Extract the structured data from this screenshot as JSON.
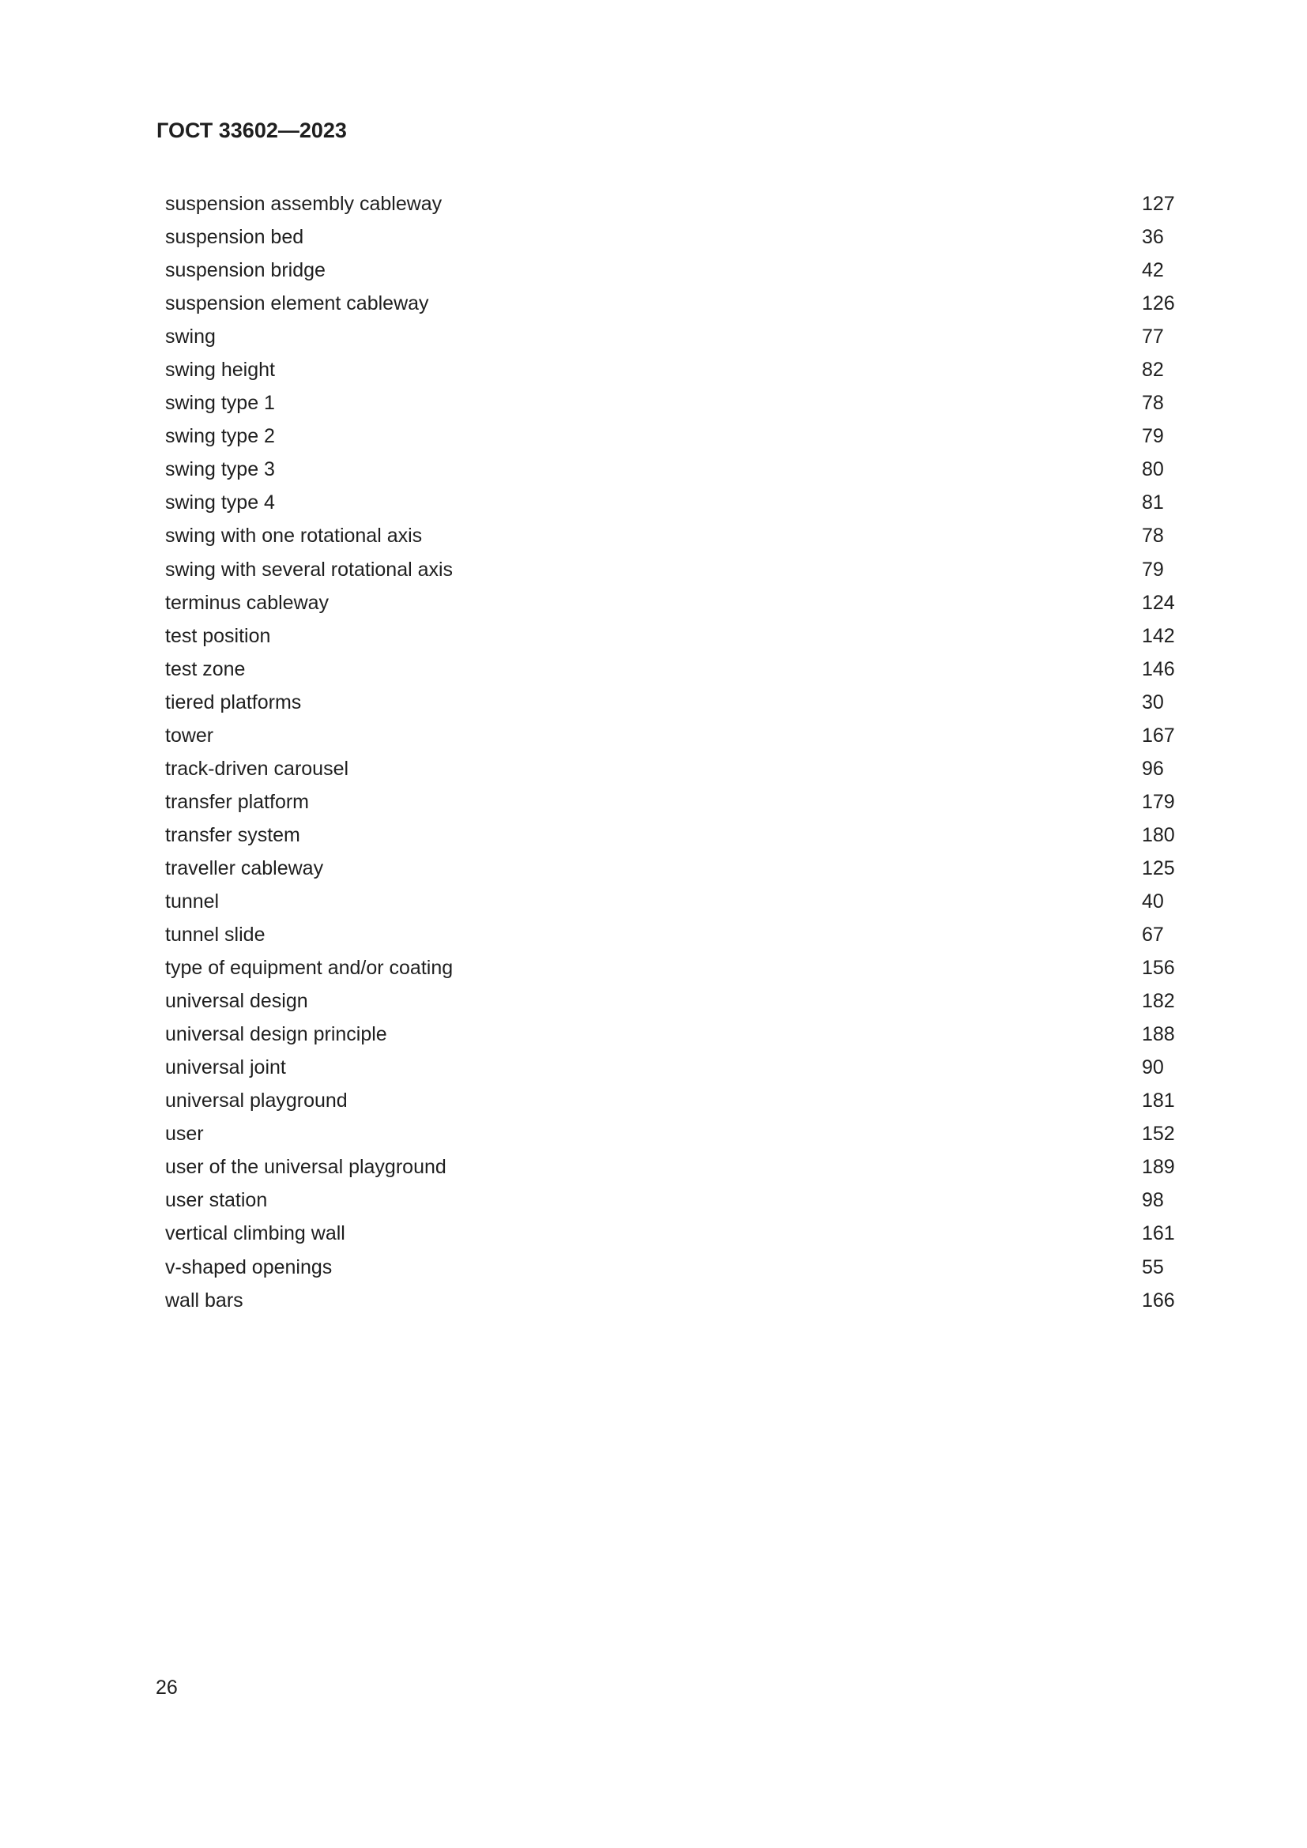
{
  "header": {
    "title": "ГОСТ 33602—2023"
  },
  "index": [
    {
      "term": "suspension assembly cableway",
      "page": "127"
    },
    {
      "term": "suspension bed",
      "page": "36"
    },
    {
      "term": "suspension bridge",
      "page": "42"
    },
    {
      "term": "suspension element cableway",
      "page": "126"
    },
    {
      "term": "swing",
      "page": "77"
    },
    {
      "term": "swing height",
      "page": "82"
    },
    {
      "term": "swing type 1",
      "page": "78"
    },
    {
      "term": "swing type 2",
      "page": "79"
    },
    {
      "term": "swing type 3",
      "page": "80"
    },
    {
      "term": "swing type 4",
      "page": "81"
    },
    {
      "term": "swing with one rotational axis",
      "page": "78"
    },
    {
      "term": "swing with several rotational axis",
      "page": "79"
    },
    {
      "term": "terminus cableway",
      "page": "124"
    },
    {
      "term": "test position",
      "page": "142"
    },
    {
      "term": "test zone",
      "page": "146"
    },
    {
      "term": "tiered platforms",
      "page": "30"
    },
    {
      "term": "tower",
      "page": "167"
    },
    {
      "term": "track-driven carousel",
      "page": "96"
    },
    {
      "term": "transfer platform",
      "page": "179"
    },
    {
      "term": "transfer system",
      "page": "180"
    },
    {
      "term": "traveller cableway",
      "page": "125"
    },
    {
      "term": "tunnel",
      "page": "40"
    },
    {
      "term": "tunnel slide",
      "page": "67"
    },
    {
      "term": "type of equipment and/or coating",
      "page": "156"
    },
    {
      "term": "universal design",
      "page": "182"
    },
    {
      "term": "universal design principle",
      "page": "188"
    },
    {
      "term": "universal joint",
      "page": "90"
    },
    {
      "term": "universal playground",
      "page": "181"
    },
    {
      "term": "user",
      "page": "152"
    },
    {
      "term": "user of the universal playground",
      "page": "189"
    },
    {
      "term": "user station",
      "page": "98"
    },
    {
      "term": "vertical climbing wall",
      "page": "161"
    },
    {
      "term": "v-shaped openings",
      "page": "55"
    },
    {
      "term": "wall bars",
      "page": "166"
    }
  ],
  "footer": {
    "page_number": "26"
  }
}
